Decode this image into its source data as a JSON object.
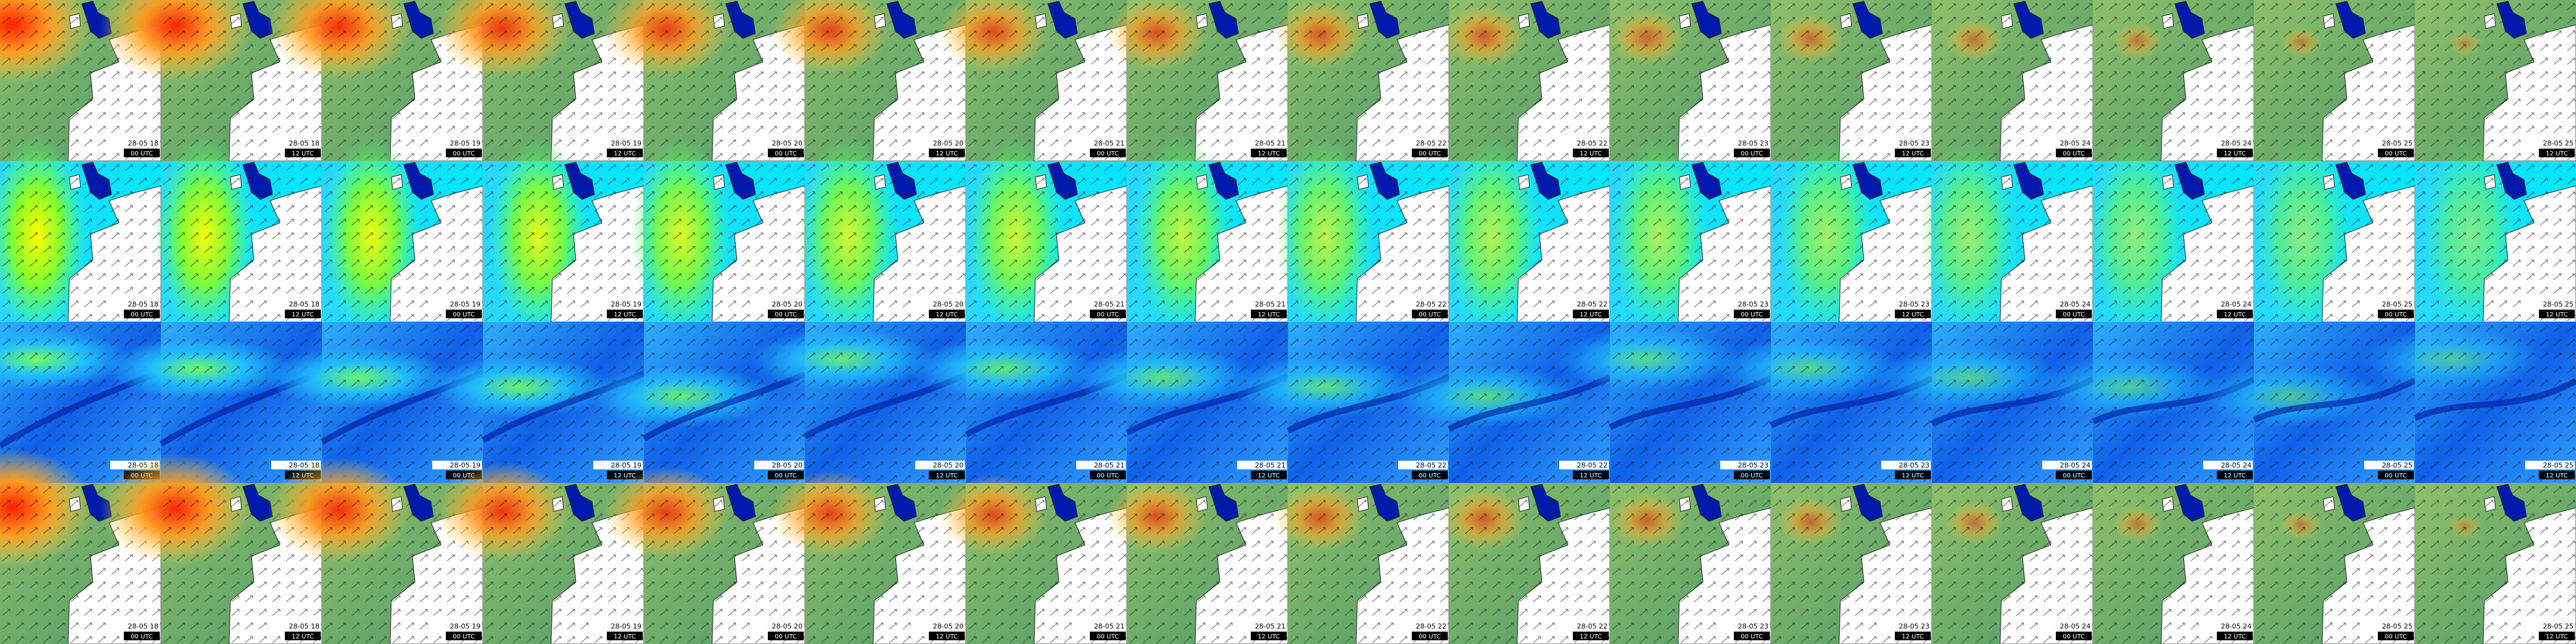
{
  "columns": [
    {
      "date": "28-05 18",
      "time": "00 UTC"
    },
    {
      "date": "28-05 18",
      "time": "12 UTC"
    },
    {
      "date": "28-05 19",
      "time": "00 UTC"
    },
    {
      "date": "28-05 19",
      "time": "12 UTC"
    },
    {
      "date": "28-05 20",
      "time": "00 UTC"
    },
    {
      "date": "28-05 20",
      "time": "12 UTC"
    },
    {
      "date": "28-05 21",
      "time": "00 UTC"
    },
    {
      "date": "28-05 21",
      "time": "12 UTC"
    },
    {
      "date": "28-05 22",
      "time": "00 UTC"
    },
    {
      "date": "28-05 22",
      "time": "12 UTC"
    },
    {
      "date": "28-05 23",
      "time": "00 UTC"
    },
    {
      "date": "28-05 23",
      "time": "12 UTC"
    },
    {
      "date": "28-05 24",
      "time": "00 UTC"
    },
    {
      "date": "28-05 24",
      "time": "12 UTC"
    },
    {
      "date": "28-05 25",
      "time": "00 UTC"
    },
    {
      "date": "28-05 25",
      "time": "12 UTC"
    }
  ]
}
